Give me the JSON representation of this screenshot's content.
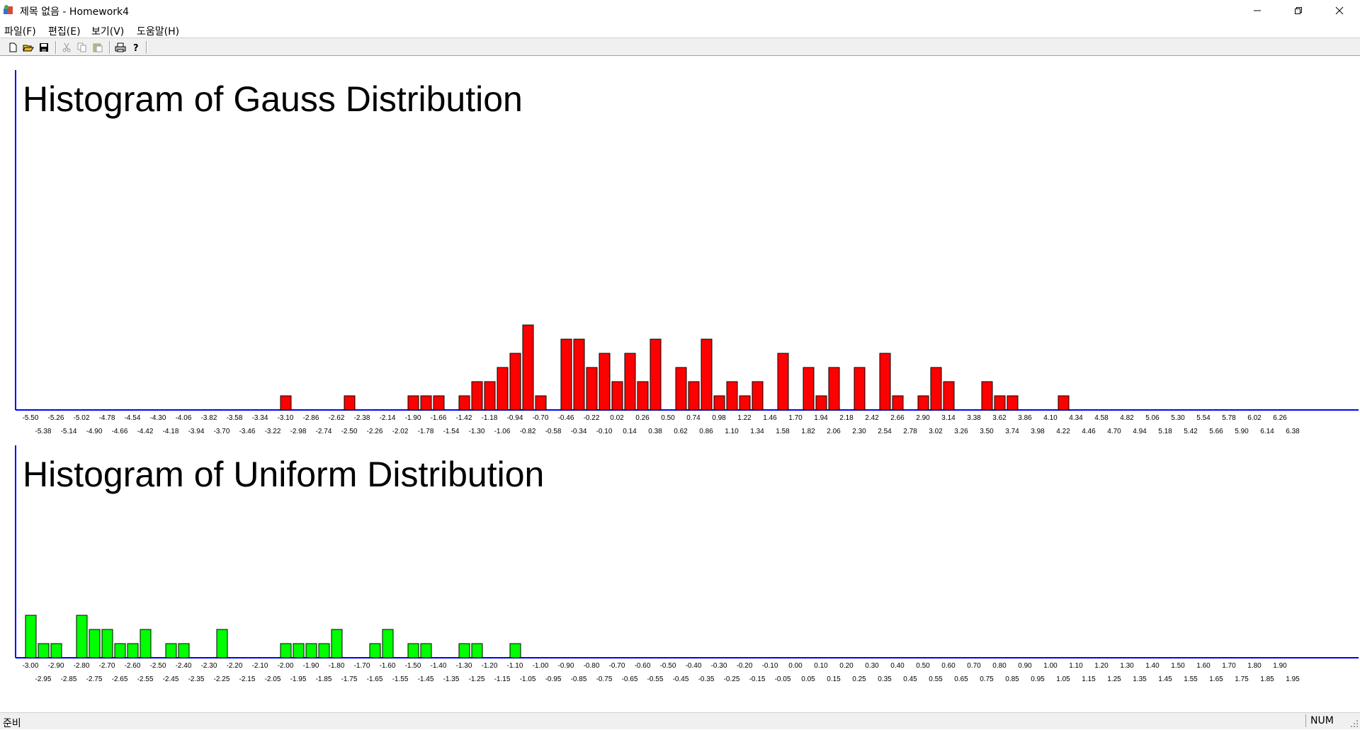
{
  "window": {
    "title": "제목 없음 - Homework4",
    "icon": "mfc-app-icon"
  },
  "menu": [
    "파일(F)",
    "편집(E)",
    "보기(V)",
    "도움말(H)"
  ],
  "toolbar": {
    "buttons": [
      "new-icon",
      "open-icon",
      "save-icon",
      "cut-icon",
      "copy-icon",
      "paste-icon",
      "print-icon",
      "help-icon"
    ]
  },
  "status": {
    "text": "준비",
    "indicator": "NUM"
  },
  "colors": {
    "axis": "#0000ff",
    "gauss_bar": "#ff0000",
    "uniform_bar": "#00ff00"
  },
  "chart_data": [
    {
      "type": "bar",
      "title": "Histogram of Gauss Distribution",
      "bar_color": "#ff0000",
      "bin_start": -5.5,
      "bin_width": 0.12,
      "bin_count": 100,
      "tick_labels_row1": [
        "-5.50",
        "-5.26",
        "-5.02",
        "-4.78",
        "-4.54",
        "-4.30",
        "-4.06",
        "-3.82",
        "-3.58",
        "-3.34",
        "-3.10",
        "-2.86",
        "-2.62",
        "-2.38",
        "-2.14",
        "-1.90",
        "-1.66",
        "-1.42",
        "-1.18",
        "-0.94",
        "-0.70",
        "-0.46",
        "-0.22",
        "0.02",
        "0.26",
        "0.50",
        "0.74",
        "0.98",
        "1.22",
        "1.46",
        "1.70",
        "1.94",
        "2.18",
        "2.42",
        "2.66",
        "2.90",
        "3.14",
        "3.38",
        "3.62",
        "3.86",
        "4.10",
        "4.34",
        "4.58",
        "4.82",
        "5.06",
        "5.30",
        "5.54",
        "5.78",
        "6.02",
        "6.26"
      ],
      "tick_labels_row2": [
        "-5.38",
        "-5.14",
        "-4.90",
        "-4.66",
        "-4.42",
        "-4.18",
        "-3.94",
        "-3.70",
        "-3.46",
        "-3.22",
        "-2.98",
        "-2.74",
        "-2.50",
        "-2.26",
        "-2.02",
        "-1.78",
        "-1.54",
        "-1.30",
        "-1.06",
        "-0.82",
        "-0.58",
        "-0.34",
        "-0.10",
        "0.14",
        "0.38",
        "0.62",
        "0.86",
        "1.10",
        "1.34",
        "1.58",
        "1.82",
        "2.06",
        "2.30",
        "2.54",
        "2.78",
        "3.02",
        "3.26",
        "3.50",
        "3.74",
        "3.98",
        "4.22",
        "4.46",
        "4.70",
        "4.94",
        "5.18",
        "5.42",
        "5.66",
        "5.90",
        "6.14",
        "6.38"
      ],
      "counts": [
        0,
        0,
        0,
        0,
        0,
        0,
        0,
        0,
        0,
        0,
        0,
        0,
        0,
        0,
        0,
        0,
        0,
        0,
        0,
        0,
        1,
        0,
        0,
        0,
        0,
        1,
        0,
        0,
        0,
        0,
        1,
        1,
        1,
        0,
        1,
        2,
        2,
        3,
        4,
        6,
        1,
        0,
        5,
        5,
        3,
        4,
        2,
        4,
        2,
        5,
        0,
        3,
        2,
        5,
        1,
        2,
        1,
        2,
        0,
        4,
        0,
        3,
        1,
        3,
        0,
        3,
        0,
        4,
        1,
        0,
        1,
        3,
        2,
        0,
        0,
        2,
        1,
        1,
        0,
        0,
        0,
        1,
        0,
        0,
        0,
        0,
        0,
        0,
        0,
        0,
        0,
        0,
        0,
        0,
        0,
        0,
        0,
        0,
        0,
        0
      ]
    },
    {
      "type": "bar",
      "title": "Histogram of Uniform Distribution",
      "bar_color": "#00ff00",
      "bin_start": -3.0,
      "bin_width": 0.05,
      "bin_count": 100,
      "tick_labels_row1": [
        "-3.00",
        "-2.90",
        "-2.80",
        "-2.70",
        "-2.60",
        "-2.50",
        "-2.40",
        "-2.30",
        "-2.20",
        "-2.10",
        "-2.00",
        "-1.90",
        "-1.80",
        "-1.70",
        "-1.60",
        "-1.50",
        "-1.40",
        "-1.30",
        "-1.20",
        "-1.10",
        "-1.00",
        "-0.90",
        "-0.80",
        "-0.70",
        "-0.60",
        "-0.50",
        "-0.40",
        "-0.30",
        "-0.20",
        "-0.10",
        "0.00",
        "0.10",
        "0.20",
        "0.30",
        "0.40",
        "0.50",
        "0.60",
        "0.70",
        "0.80",
        "0.90",
        "1.00",
        "1.10",
        "1.20",
        "1.30",
        "1.40",
        "1.50",
        "1.60",
        "1.70",
        "1.80",
        "1.90"
      ],
      "tick_labels_row2": [
        "-2.95",
        "-2.85",
        "-2.75",
        "-2.65",
        "-2.55",
        "-2.45",
        "-2.35",
        "-2.25",
        "-2.15",
        "-2.05",
        "-1.95",
        "-1.85",
        "-1.75",
        "-1.65",
        "-1.55",
        "-1.45",
        "-1.35",
        "-1.25",
        "-1.15",
        "-1.05",
        "-0.95",
        "-0.85",
        "-0.75",
        "-0.65",
        "-0.55",
        "-0.45",
        "-0.35",
        "-0.25",
        "-0.15",
        "-0.05",
        "0.05",
        "0.15",
        "0.25",
        "0.35",
        "0.45",
        "0.55",
        "0.65",
        "0.75",
        "0.85",
        "0.95",
        "1.05",
        "1.15",
        "1.25",
        "1.35",
        "1.45",
        "1.55",
        "1.65",
        "1.75",
        "1.85",
        "1.95"
      ],
      "counts": [
        3,
        1,
        1,
        0,
        3,
        2,
        2,
        1,
        1,
        2,
        0,
        1,
        1,
        0,
        0,
        2,
        0,
        0,
        0,
        0,
        1,
        1,
        1,
        1,
        2,
        0,
        0,
        1,
        2,
        0,
        1,
        1,
        0,
        0,
        1,
        1,
        0,
        0,
        1,
        0,
        0,
        0,
        0,
        0,
        0,
        0,
        0,
        0,
        0,
        0,
        0,
        0,
        0,
        0,
        0,
        0,
        0,
        0,
        0,
        0,
        0,
        0,
        0,
        0,
        0,
        0,
        0,
        0,
        0,
        0,
        0,
        0,
        0,
        0,
        0,
        0,
        0,
        0,
        0,
        0,
        0,
        0,
        0,
        0,
        0,
        0,
        0,
        0,
        0,
        0,
        0,
        0,
        0,
        0,
        0,
        0,
        0,
        0,
        0,
        0
      ]
    }
  ]
}
